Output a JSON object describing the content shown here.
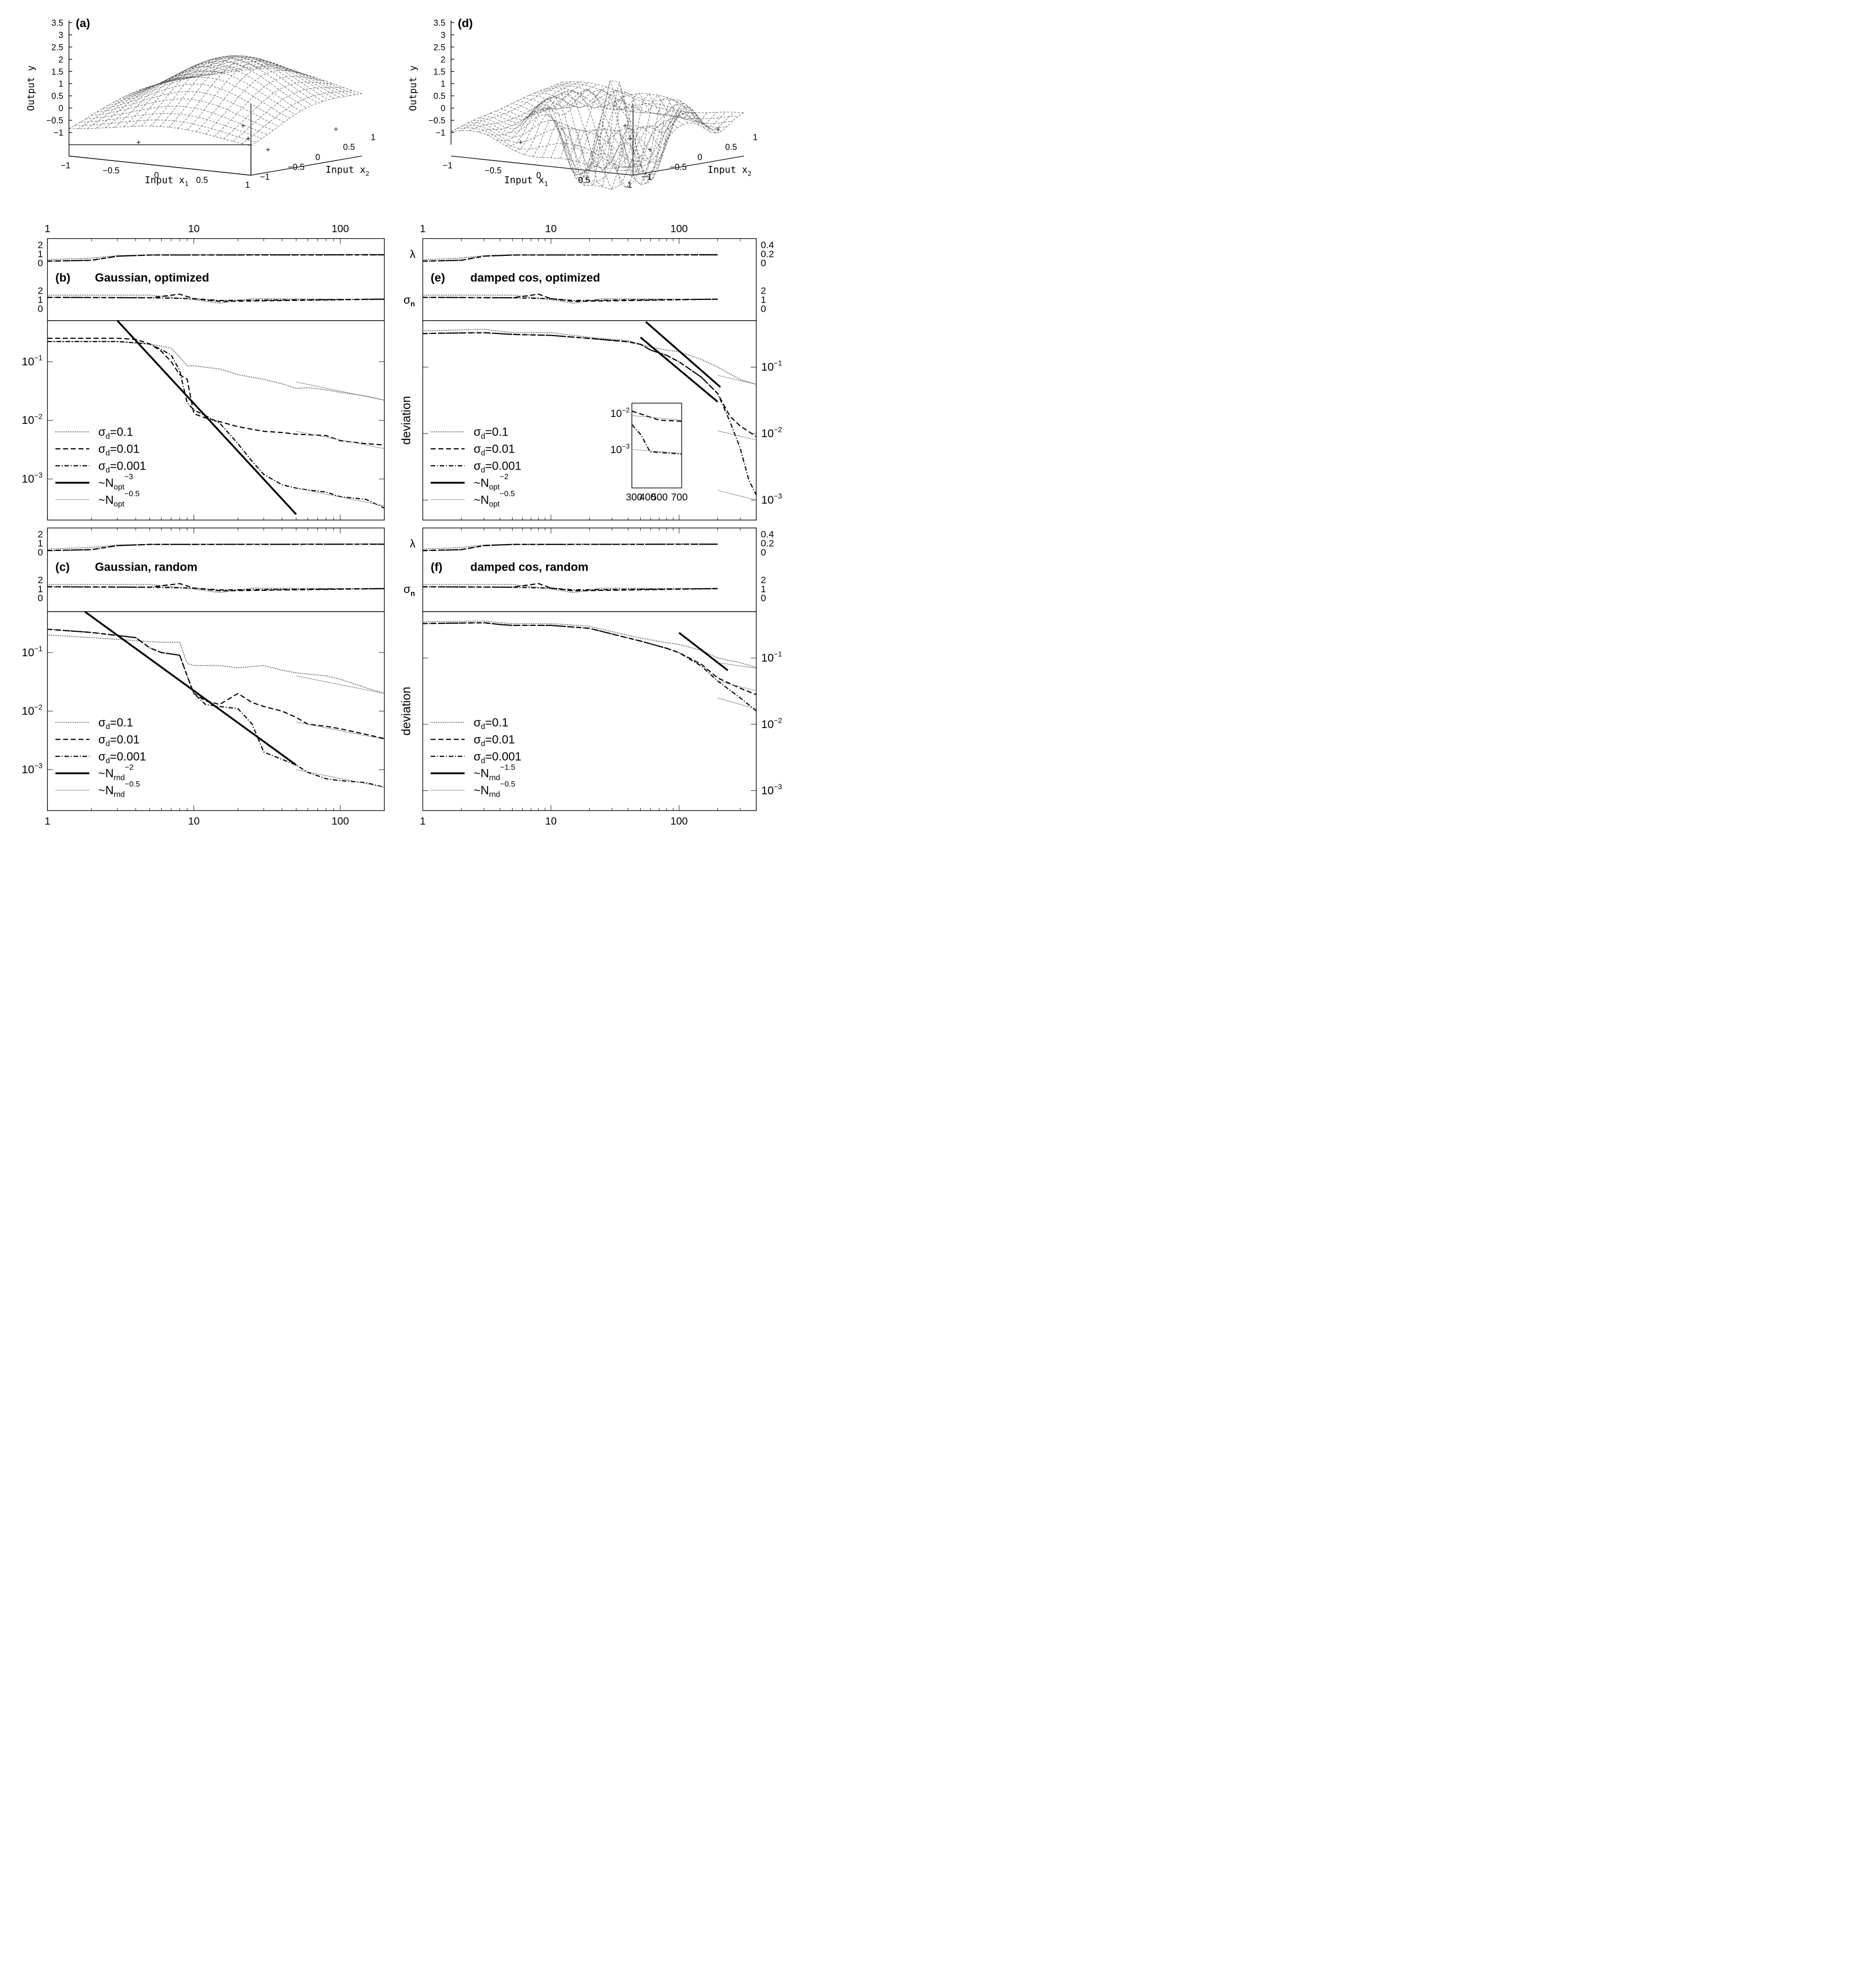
{
  "figure": {
    "description_panels": [
      "a",
      "b",
      "c",
      "d",
      "e",
      "f"
    ]
  },
  "chart_data": [
    {
      "id": "a",
      "type": "surface",
      "label": "(a)",
      "zlabel": "Output y",
      "xlabel": "Input x",
      "xlabel_sub": "1",
      "ylabel": "Input x",
      "ylabel_sub": "2",
      "z_ticks": [
        "3.5",
        "3",
        "2.5",
        "2",
        "1.5",
        "1",
        "0.5",
        "0",
        "−0.5",
        "−1"
      ],
      "x_ticks": [
        "−1",
        "−0.5",
        "0",
        "0.5",
        "1"
      ],
      "y_ticks": [
        "−1",
        "−0.5",
        "0",
        "0.5",
        "1"
      ],
      "points_color": "#3a3aff",
      "points": [
        [
          -0.6,
          -0.4
        ],
        [
          0.0,
          0.5
        ],
        [
          0.3,
          0.1
        ],
        [
          0.7,
          -0.2
        ],
        [
          0.9,
          0.7
        ]
      ]
    },
    {
      "id": "d",
      "type": "surface",
      "label": "(d)",
      "zlabel": "Output y",
      "xlabel": "Input x",
      "xlabel_sub": "1",
      "ylabel": "Input x",
      "ylabel_sub": "2",
      "z_ticks": [
        "3.5",
        "3",
        "2.5",
        "2",
        "1.5",
        "1",
        "0.5",
        "0",
        "−0.5",
        "−1"
      ],
      "x_ticks": [
        "−1",
        "−0.5",
        "0",
        "0.5",
        "1"
      ],
      "y_ticks": [
        "−1",
        "−0.5",
        "0",
        "0.5",
        "1"
      ],
      "points_color": "#3a3aff"
    },
    {
      "id": "b",
      "type": "line",
      "label": "(b)",
      "title": "Gaussian, optimized",
      "x_top_ticks": [
        "1",
        "10",
        "100"
      ],
      "lambda_ticks": [
        "2",
        "1",
        "0"
      ],
      "sigma_ticks": [
        "2",
        "1",
        "0"
      ],
      "y_ticks": [
        "10⁻¹",
        "10⁻²",
        "10⁻³"
      ],
      "y_tick_base": [
        "10",
        "10",
        "10"
      ],
      "y_tick_exp": [
        "-1",
        "-2",
        "-3"
      ],
      "xlim": [
        1,
        200
      ],
      "ylim": [
        0.0002,
        0.5
      ],
      "legend": [
        {
          "name": "σd=0.1",
          "sym": "σ",
          "sub": "d",
          "rest": "=0.1",
          "style": "dotted"
        },
        {
          "name": "σd=0.01",
          "sym": "σ",
          "sub": "d",
          "rest": "=0.01",
          "style": "dashed"
        },
        {
          "name": "σd=0.001",
          "sym": "σ",
          "sub": "d",
          "rest": "=0.001",
          "style": "dashdot"
        },
        {
          "name": "~Nopt^-3",
          "sym": "~N",
          "sub": "opt",
          "sup": "−3",
          "style": "thick"
        },
        {
          "name": "~Nopt^-0.5",
          "sym": "~N",
          "sub": "opt",
          "sup": "−0.5",
          "style": "thin"
        }
      ],
      "series": [
        {
          "name": "σd=0.1",
          "x": [
            1,
            3,
            5,
            7,
            8,
            9,
            10,
            15,
            20,
            30,
            40,
            50,
            60,
            80,
            100,
            150,
            200
          ],
          "values": [
            0.22,
            0.22,
            0.2,
            0.17,
            0.12,
            0.085,
            0.085,
            0.075,
            0.06,
            0.05,
            0.042,
            0.035,
            0.036,
            0.033,
            0.03,
            0.026,
            0.022
          ]
        },
        {
          "name": "σd=0.01",
          "x": [
            1,
            3,
            4,
            5,
            6,
            7,
            8,
            9,
            10,
            12,
            15,
            20,
            30,
            40,
            50,
            60,
            80,
            100,
            150,
            200
          ],
          "values": [
            0.25,
            0.25,
            0.24,
            0.2,
            0.15,
            0.1,
            0.06,
            0.05,
            0.013,
            0.011,
            0.0095,
            0.0078,
            0.0065,
            0.0062,
            0.0058,
            0.0057,
            0.0055,
            0.0045,
            0.004,
            0.0038
          ]
        },
        {
          "name": "σd=0.001",
          "x": [
            1,
            3,
            5,
            6,
            7,
            8,
            9,
            10,
            12,
            15,
            20,
            25,
            30,
            40,
            50,
            60,
            80,
            100,
            150,
            200
          ],
          "values": [
            0.22,
            0.22,
            0.2,
            0.16,
            0.13,
            0.07,
            0.02,
            0.015,
            0.012,
            0.009,
            0.004,
            0.002,
            0.0012,
            0.0008,
            0.0007,
            0.00065,
            0.0006,
            0.0005,
            0.00045,
            0.00032
          ]
        },
        {
          "name": "~Nopt^-3",
          "x": [
            3,
            50
          ],
          "values": [
            0.5,
            0.00025
          ]
        },
        {
          "name": "ref0.1",
          "x": [
            50,
            200
          ],
          "values": [
            0.045,
            0.022
          ]
        },
        {
          "name": "ref0.01",
          "x": [
            50,
            200
          ],
          "values": [
            0.0065,
            0.0033
          ]
        },
        {
          "name": "ref0.001",
          "x": [
            50,
            200
          ],
          "values": [
            0.0007,
            0.00035
          ]
        }
      ]
    },
    {
      "id": "c",
      "type": "line",
      "label": "(c)",
      "title": "Gaussian, random",
      "x_bottom_ticks": [
        "1",
        "10",
        "100"
      ],
      "lambda_ticks": [
        "2",
        "1",
        "0"
      ],
      "sigma_ticks": [
        "2",
        "1",
        "0"
      ],
      "y_tick_base": [
        "10",
        "10",
        "10"
      ],
      "y_tick_exp": [
        "-1",
        "-2",
        "-3"
      ],
      "xlim": [
        1,
        200
      ],
      "ylim": [
        0.0002,
        0.5
      ],
      "legend": [
        {
          "name": "σd=0.1",
          "sym": "σ",
          "sub": "d",
          "rest": "=0.1",
          "style": "dotted"
        },
        {
          "name": "σd=0.01",
          "sym": "σ",
          "sub": "d",
          "rest": "=0.01",
          "style": "dashed"
        },
        {
          "name": "σd=0.001",
          "sym": "σ",
          "sub": "d",
          "rest": "=0.001",
          "style": "dashdot"
        },
        {
          "name": "~Nrnd^-2",
          "sym": "~N",
          "sub": "rnd",
          "sup": "−2",
          "style": "thick"
        },
        {
          "name": "~Nrnd^-0.5",
          "sym": "~N",
          "sub": "rnd",
          "sup": "−0.5",
          "style": "thin"
        }
      ],
      "series": [
        {
          "name": "σd=0.1",
          "x": [
            1,
            2,
            4,
            6,
            8,
            9,
            10,
            15,
            20,
            30,
            40,
            50,
            80,
            100,
            150,
            200
          ],
          "values": [
            0.2,
            0.18,
            0.16,
            0.15,
            0.15,
            0.065,
            0.06,
            0.06,
            0.055,
            0.06,
            0.05,
            0.045,
            0.04,
            0.035,
            0.025,
            0.02
          ]
        },
        {
          "name": "σd=0.01",
          "x": [
            1,
            2,
            4,
            5,
            6,
            8,
            9,
            10,
            12,
            15,
            20,
            25,
            30,
            40,
            50,
            60,
            80,
            100,
            150,
            200
          ],
          "values": [
            0.25,
            0.22,
            0.18,
            0.12,
            0.1,
            0.09,
            0.04,
            0.02,
            0.015,
            0.013,
            0.02,
            0.014,
            0.012,
            0.01,
            0.0078,
            0.006,
            0.0055,
            0.005,
            0.004,
            0.0034
          ]
        },
        {
          "name": "σd=0.001",
          "x": [
            1,
            2,
            4,
            5,
            6,
            8,
            9,
            10,
            12,
            15,
            20,
            25,
            30,
            40,
            50,
            60,
            80,
            100,
            150,
            200
          ],
          "values": [
            0.25,
            0.22,
            0.18,
            0.12,
            0.1,
            0.09,
            0.04,
            0.02,
            0.013,
            0.012,
            0.011,
            0.006,
            0.002,
            0.0015,
            0.0012,
            0.0009,
            0.0007,
            0.00065,
            0.0006,
            0.0005
          ]
        },
        {
          "name": "~Nrnd^-2",
          "x": [
            1.8,
            50
          ],
          "values": [
            0.5,
            0.0012
          ]
        },
        {
          "name": "ref0.1",
          "x": [
            50,
            200
          ],
          "values": [
            0.04,
            0.02
          ]
        },
        {
          "name": "ref0.01",
          "x": [
            50,
            200
          ],
          "values": [
            0.0065,
            0.0033
          ]
        },
        {
          "name": "ref0.001",
          "x": [
            50,
            200
          ],
          "values": [
            0.001,
            0.0005
          ]
        }
      ]
    },
    {
      "id": "e",
      "type": "line",
      "label": "(e)",
      "title": "damped cos, optimized",
      "ylabel": "deviation",
      "lambda_label": "λ",
      "sigma_label_sym": "σ",
      "sigma_label_sub": "n",
      "x_top_ticks": [
        "1",
        "10",
        "100"
      ],
      "lambda_ticks": [
        "0.4",
        "0.2",
        "0"
      ],
      "sigma_ticks": [
        "2",
        "1",
        "0"
      ],
      "y_tick_base": [
        "10",
        "10",
        "10"
      ],
      "y_tick_exp": [
        "-1",
        "-2",
        "-3"
      ],
      "xlim": [
        1,
        400
      ],
      "ylim": [
        0.0005,
        0.5
      ],
      "inset": {
        "x_ticks": [
          "300",
          "400",
          "500",
          "700"
        ],
        "y_tick_base": [
          "10",
          "10"
        ],
        "y_tick_exp": [
          "-2",
          "-3"
        ]
      },
      "legend": [
        {
          "name": "σd=0.1",
          "sym": "σ",
          "sub": "d",
          "rest": "=0.1",
          "style": "dotted"
        },
        {
          "name": "σd=0.01",
          "sym": "σ",
          "sub": "d",
          "rest": "=0.01",
          "style": "dashed"
        },
        {
          "name": "σd=0.001",
          "sym": "σ",
          "sub": "d",
          "rest": "=0.001",
          "style": "dashdot"
        },
        {
          "name": "~Nopt^-2",
          "sym": "~N",
          "sub": "opt",
          "sup": "−2",
          "style": "thick"
        },
        {
          "name": "~Nopt^-0.5",
          "sym": "~N",
          "sub": "opt",
          "sup": "−0.5",
          "style": "thin"
        }
      ],
      "series": [
        {
          "name": "σd=0.1",
          "x": [
            1,
            3,
            5,
            10,
            20,
            40,
            50,
            60,
            80,
            100,
            150,
            200,
            300,
            400
          ],
          "values": [
            0.35,
            0.37,
            0.33,
            0.33,
            0.28,
            0.25,
            0.22,
            0.2,
            0.18,
            0.17,
            0.13,
            0.1,
            0.065,
            0.055
          ]
        },
        {
          "name": "σd=0.01",
          "x": [
            1,
            3,
            5,
            10,
            20,
            40,
            50,
            60,
            80,
            100,
            150,
            200,
            250,
            300,
            400
          ],
          "values": [
            0.32,
            0.33,
            0.31,
            0.3,
            0.27,
            0.24,
            0.22,
            0.18,
            0.15,
            0.12,
            0.07,
            0.04,
            0.018,
            0.013,
            0.009
          ]
        },
        {
          "name": "σd=0.001",
          "x": [
            1,
            3,
            5,
            10,
            20,
            40,
            50,
            60,
            80,
            100,
            150,
            200,
            250,
            300,
            350,
            400
          ],
          "values": [
            0.32,
            0.33,
            0.31,
            0.3,
            0.27,
            0.24,
            0.22,
            0.18,
            0.15,
            0.12,
            0.07,
            0.04,
            0.015,
            0.006,
            0.002,
            0.0012
          ]
        },
        {
          "name": "~Nopt^-2",
          "x": [
            55,
            210
          ],
          "values": [
            0.48,
            0.05
          ]
        },
        {
          "name": "~Nopt^-2b",
          "x": [
            50,
            200
          ],
          "values": [
            0.28,
            0.03
          ]
        },
        {
          "name": "ref0.1",
          "x": [
            200,
            400
          ],
          "values": [
            0.075,
            0.055
          ]
        },
        {
          "name": "ref0.01",
          "x": [
            200,
            400
          ],
          "values": [
            0.011,
            0.008
          ]
        },
        {
          "name": "ref0.001",
          "x": [
            200,
            400
          ],
          "values": [
            0.0014,
            0.001
          ]
        }
      ]
    },
    {
      "id": "f",
      "type": "line",
      "label": "(f)",
      "title": "damped cos, random",
      "ylabel": "deviation",
      "lambda_label": "λ",
      "sigma_label_sym": "σ",
      "sigma_label_sub": "n",
      "x_bottom_ticks": [
        "1",
        "10",
        "100"
      ],
      "lambda_ticks": [
        "0.4",
        "0.2",
        "0"
      ],
      "sigma_ticks": [
        "2",
        "1",
        "0"
      ],
      "y_tick_base": [
        "10",
        "10",
        "10"
      ],
      "y_tick_exp": [
        "-1",
        "-2",
        "-3"
      ],
      "xlim": [
        1,
        400
      ],
      "ylim": [
        0.0005,
        0.5
      ],
      "legend": [
        {
          "name": "σd=0.1",
          "sym": "σ",
          "sub": "d",
          "rest": "=0.1",
          "style": "dotted"
        },
        {
          "name": "σd=0.01",
          "sym": "σ",
          "sub": "d",
          "rest": "=0.01",
          "style": "dashed"
        },
        {
          "name": "σd=0.001",
          "sym": "σ",
          "sub": "d",
          "rest": "=0.001",
          "style": "dashdot"
        },
        {
          "name": "~Nrnd^-1.5",
          "sym": "~N",
          "sub": "rnd",
          "sup": "−1.5",
          "style": "thick"
        },
        {
          "name": "~Nrnd^-0.5",
          "sym": "~N",
          "sub": "rnd",
          "sup": "−0.5",
          "style": "thin"
        }
      ],
      "series": [
        {
          "name": "σd=0.1",
          "x": [
            1,
            3,
            4,
            5,
            10,
            20,
            30,
            50,
            80,
            100,
            150,
            200,
            300,
            400
          ],
          "values": [
            0.35,
            0.36,
            0.34,
            0.33,
            0.33,
            0.3,
            0.25,
            0.2,
            0.17,
            0.16,
            0.13,
            0.1,
            0.085,
            0.072
          ]
        },
        {
          "name": "σd=0.01",
          "x": [
            1,
            3,
            4,
            5,
            10,
            20,
            30,
            50,
            80,
            100,
            150,
            200,
            300,
            400
          ],
          "values": [
            0.33,
            0.34,
            0.32,
            0.31,
            0.31,
            0.28,
            0.23,
            0.18,
            0.14,
            0.12,
            0.08,
            0.05,
            0.035,
            0.028
          ]
        },
        {
          "name": "σd=0.001",
          "x": [
            1,
            3,
            4,
            5,
            10,
            20,
            30,
            50,
            80,
            100,
            150,
            200,
            300,
            400
          ],
          "values": [
            0.33,
            0.34,
            0.32,
            0.31,
            0.31,
            0.28,
            0.23,
            0.18,
            0.14,
            0.12,
            0.075,
            0.045,
            0.025,
            0.016
          ]
        },
        {
          "name": "~Nrnd^-1.5",
          "x": [
            100,
            240
          ],
          "values": [
            0.24,
            0.065
          ]
        },
        {
          "name": "ref0.1",
          "x": [
            200,
            400
          ],
          "values": [
            0.085,
            0.07
          ]
        },
        {
          "name": "ref0.01",
          "x": [
            200,
            400
          ],
          "values": [
            0.045,
            0.032
          ]
        },
        {
          "name": "ref0.001",
          "x": [
            200,
            400
          ],
          "values": [
            0.025,
            0.017
          ]
        }
      ]
    }
  ]
}
